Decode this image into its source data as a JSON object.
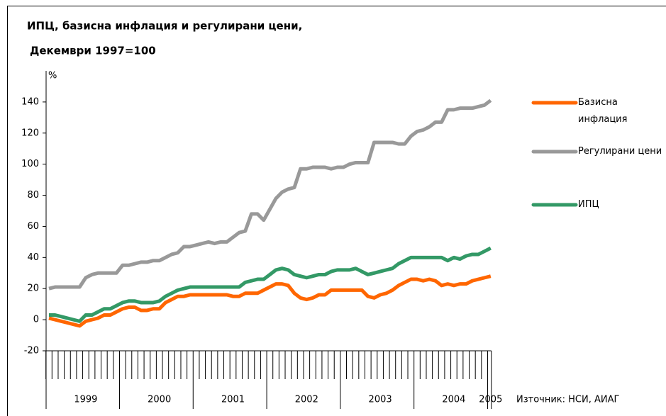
{
  "chart_data": {
    "type": "line",
    "title": "ИПЦ, базисна инфлация и регулирани цени,",
    "subtitle": "Декември 1997=100",
    "y_label": "%",
    "source": "Източник: НСИ, АИАГ",
    "categories": [
      null,
      null,
      null,
      null,
      null,
      null,
      "1999",
      null,
      null,
      null,
      null,
      null,
      null,
      null,
      null,
      null,
      null,
      null,
      "2000",
      null,
      null,
      null,
      null,
      null,
      null,
      null,
      null,
      null,
      null,
      null,
      "2001",
      null,
      null,
      null,
      null,
      null,
      null,
      null,
      null,
      null,
      null,
      null,
      "2002",
      null,
      null,
      null,
      null,
      null,
      null,
      null,
      null,
      null,
      null,
      null,
      "2003",
      null,
      null,
      null,
      null,
      null,
      null,
      null,
      null,
      null,
      null,
      null,
      "2004",
      null,
      null,
      null,
      null,
      null,
      "2005"
    ],
    "ylim": [
      -20,
      160
    ],
    "yticks": [
      -20,
      0,
      20,
      40,
      60,
      80,
      100,
      120,
      140
    ],
    "series": [
      {
        "name": "Базисна инфлация",
        "color": "#ff6600",
        "values": [
          1,
          0,
          -1,
          -2,
          -3,
          -4,
          -1,
          0,
          1,
          3,
          3,
          5,
          7,
          8,
          8,
          6,
          6,
          7,
          7,
          11,
          13,
          15,
          15,
          16,
          16,
          16,
          16,
          16,
          16,
          16,
          15,
          15,
          17,
          17,
          17,
          19,
          21,
          23,
          23,
          22,
          17,
          14,
          13,
          14,
          16,
          16,
          19,
          19,
          19,
          19,
          19,
          19,
          15,
          14,
          16,
          17,
          19,
          22,
          24,
          26,
          26,
          25,
          26,
          25,
          22,
          23,
          22,
          23,
          23,
          25,
          26,
          27,
          28
        ]
      },
      {
        "name": "Регулирани цени",
        "color": "#999999",
        "values": [
          20,
          21,
          21,
          21,
          21,
          21,
          27,
          29,
          30,
          30,
          30,
          30,
          35,
          35,
          36,
          37,
          37,
          38,
          38,
          40,
          42,
          43,
          47,
          47,
          48,
          49,
          50,
          49,
          50,
          50,
          53,
          56,
          57,
          68,
          68,
          64,
          71,
          78,
          82,
          84,
          85,
          97,
          97,
          98,
          98,
          98,
          97,
          98,
          98,
          100,
          101,
          101,
          101,
          114,
          114,
          114,
          114,
          113,
          113,
          118,
          121,
          122,
          124,
          127,
          127,
          135,
          135,
          136,
          136,
          136,
          137,
          138,
          141
        ]
      },
      {
        "name": "ИПЦ",
        "color": "#339966",
        "values": [
          3,
          3,
          2,
          1,
          0,
          -1,
          3,
          3,
          5,
          7,
          7,
          9,
          11,
          12,
          12,
          11,
          11,
          11,
          12,
          15,
          17,
          19,
          20,
          21,
          21,
          21,
          21,
          21,
          21,
          21,
          21,
          21,
          24,
          25,
          26,
          26,
          29,
          32,
          33,
          32,
          29,
          28,
          27,
          28,
          29,
          29,
          31,
          32,
          32,
          32,
          33,
          31,
          29,
          30,
          31,
          32,
          33,
          36,
          38,
          40,
          40,
          40,
          40,
          40,
          40,
          38,
          40,
          39,
          41,
          42,
          42,
          44,
          46
        ]
      }
    ]
  }
}
